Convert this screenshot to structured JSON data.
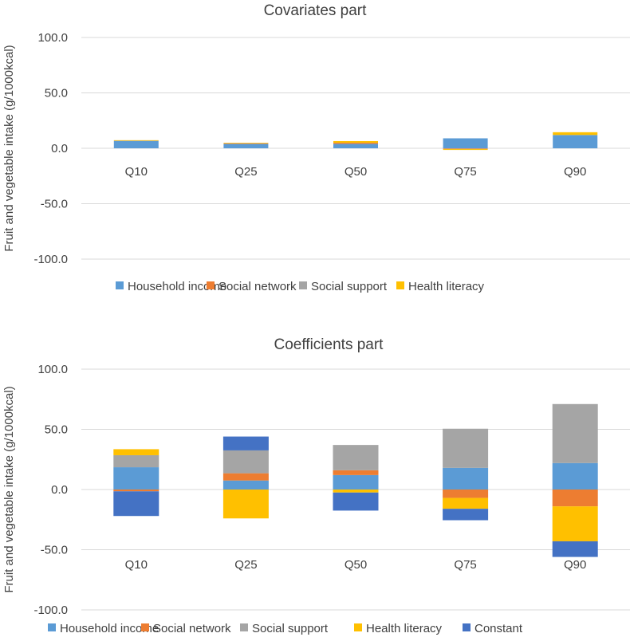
{
  "colors": {
    "household_income": "#5b9bd5",
    "social_network": "#ed7d31",
    "social_support": "#a5a5a5",
    "health_literacy": "#ffc000",
    "constant": "#4472c4",
    "gridline": "#d9d9d9",
    "text": "#404040"
  },
  "chart_data": [
    {
      "type": "bar",
      "stacked": true,
      "title": "Covariates part",
      "ylabel": "Fruit and vegetable intake (g/1000kcal)",
      "xlabel": "",
      "ylim": [
        -100,
        100
      ],
      "yticks": [
        100,
        50,
        0,
        -50,
        -100
      ],
      "ytick_labels": [
        "100.0",
        "50.0",
        "0.0",
        "-50.0",
        "-100.0"
      ],
      "grid": true,
      "legend_position": "bottom",
      "categories": [
        "Q10",
        "Q25",
        "Q50",
        "Q75",
        "Q90"
      ],
      "series": [
        {
          "name": "Household income",
          "key": "household_income",
          "values": [
            6.5,
            4.0,
            4.0,
            9.0,
            12.0
          ]
        },
        {
          "name": "Social network",
          "key": "social_network",
          "values": [
            0.0,
            0.5,
            1.0,
            -0.5,
            0.0
          ]
        },
        {
          "name": "Social support",
          "key": "social_support",
          "values": [
            0.3,
            0.0,
            0.0,
            -0.3,
            0.0
          ]
        },
        {
          "name": "Health literacy",
          "key": "health_literacy",
          "values": [
            0.5,
            0.5,
            1.5,
            -0.7,
            2.5
          ]
        }
      ]
    },
    {
      "type": "bar",
      "stacked": true,
      "title": "Coefficients part",
      "ylabel": "Fruit and vegetable intake (g/1000kcal)",
      "xlabel": "",
      "ylim": [
        -100,
        100
      ],
      "yticks": [
        100,
        50,
        0,
        -50,
        -100
      ],
      "ytick_labels": [
        "100.0",
        "50.0",
        "0.0",
        "-50.0",
        "-100.0"
      ],
      "grid": true,
      "legend_position": "bottom",
      "categories": [
        "Q10",
        "Q25",
        "Q50",
        "Q75",
        "Q90"
      ],
      "series": [
        {
          "name": "Household income",
          "key": "household_income",
          "values": [
            18.5,
            7.5,
            12.0,
            18.0,
            22.0
          ]
        },
        {
          "name": "Social network",
          "key": "social_network",
          "values": [
            -1.5,
            6.0,
            4.0,
            -7.0,
            -14.0
          ]
        },
        {
          "name": "Social support",
          "key": "social_support",
          "values": [
            10.0,
            19.0,
            21.0,
            32.5,
            49.0
          ]
        },
        {
          "name": "Health literacy",
          "key": "health_literacy",
          "values": [
            5.0,
            -24.0,
            -2.5,
            -9.0,
            -29.0
          ]
        },
        {
          "name": "Constant",
          "key": "constant",
          "values": [
            -20.5,
            11.5,
            -15.0,
            -9.5,
            -13.0
          ]
        }
      ]
    }
  ]
}
